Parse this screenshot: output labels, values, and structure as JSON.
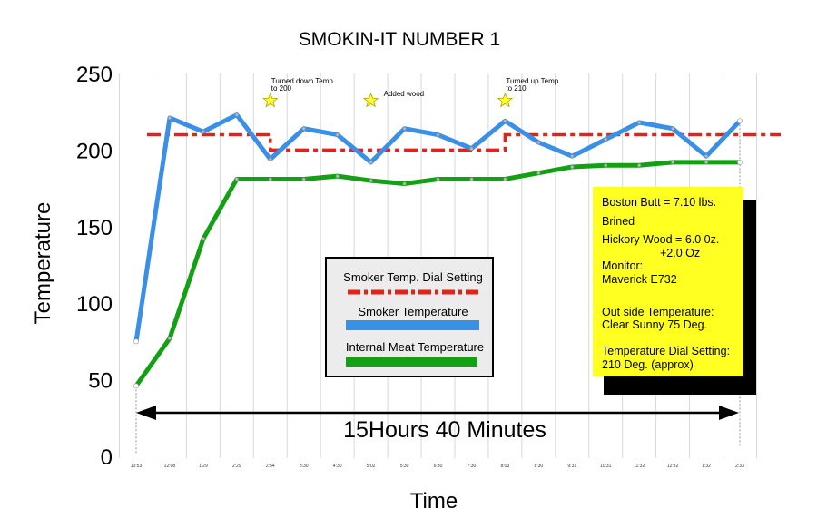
{
  "chart_data": {
    "type": "line",
    "title": "SMOKIN-IT NUMBER 1",
    "xlabel": "Time",
    "ylabel": "Temperature",
    "ylim": [
      0,
      250
    ],
    "yticks": [
      0,
      50,
      100,
      150,
      200,
      250
    ],
    "grid": "vertical",
    "categories": [
      "10:53",
      "12:08",
      "1:29",
      "2:29",
      "2:54",
      "3:30",
      "4:30",
      "5:02",
      "5:30",
      "6:30",
      "7:30",
      "8:03",
      "8:30",
      "9:31",
      "10:31",
      "11:32",
      "12:32",
      "1:32",
      "2:33"
    ],
    "series": [
      {
        "name": "Smoker Temp. Dial Setting",
        "color": "#e0231b",
        "style": "dash-dot",
        "values": [
          null,
          210,
          210,
          210,
          200,
          200,
          200,
          200,
          200,
          200,
          200,
          210,
          210,
          210,
          210,
          210,
          210,
          210,
          210
        ]
      },
      {
        "name": "Smoker Temperature",
        "color": "#3a8fe6",
        "values": [
          75,
          221,
          212,
          223,
          194,
          214,
          210,
          192,
          214,
          210,
          201,
          219,
          205,
          196,
          207,
          218,
          214,
          196,
          219
        ]
      },
      {
        "name": "Internal Meat Temperature",
        "color": "#14a014",
        "values": [
          46,
          77,
          142,
          181,
          181,
          181,
          183,
          180,
          178,
          181,
          181,
          181,
          185,
          189,
          190,
          190,
          192,
          192,
          192
        ]
      }
    ],
    "annotations": [
      {
        "text_lines": [
          "Turned down Temp",
          "to 200"
        ],
        "at": "2:54"
      },
      {
        "text_lines": [
          "Added wood"
        ],
        "at": "5:02"
      },
      {
        "text_lines": [
          "Turned up Temp",
          "to 210"
        ],
        "at": "8:03"
      }
    ],
    "duration_label": "15Hours 40 Minutes",
    "legend_position": "center",
    "info_box": {
      "lines": [
        "Boston Butt = 7.10 lbs.",
        "Brined",
        "Hickory Wood = 6.0 0z.",
        "+2.0 Oz",
        "Monitor:",
        "Maverick E732",
        "Out side Temperature:",
        "Clear Sunny 75 Deg.",
        "Temperature Dial Setting:",
        "210 Deg. (approx)"
      ],
      "background": "#ffff22"
    }
  }
}
